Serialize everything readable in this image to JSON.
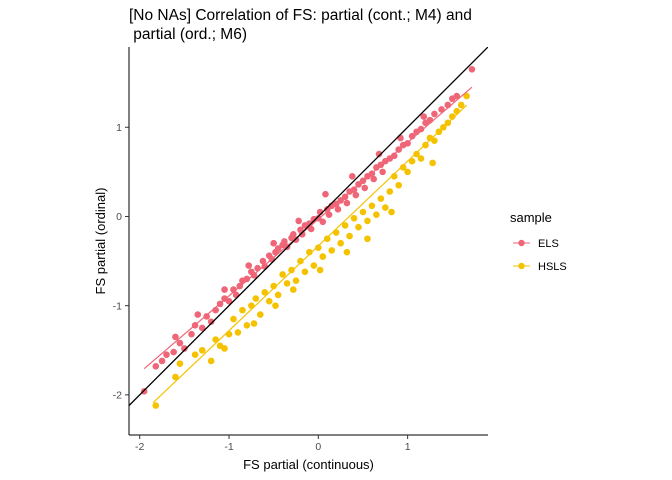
{
  "chart_data": {
    "type": "scatter",
    "title_lines": [
      "[No NAs] Correlation of FS: partial (cont.; M4) and",
      " partial (ord.; M6)"
    ],
    "xlabel": "FS partial (continuous)",
    "ylabel": "FS partial (ordinal)",
    "xlim": [
      -2.12,
      1.9
    ],
    "ylim": [
      -2.45,
      1.9
    ],
    "x_ticks": [
      -2,
      -1,
      0,
      1
    ],
    "y_ticks": [
      -2,
      -1,
      0,
      1
    ],
    "x_tick_labels": [
      "-2",
      "-1",
      "0",
      "1"
    ],
    "y_tick_labels": [
      "-2",
      "-1",
      "0",
      "1"
    ],
    "grid": false,
    "legend": {
      "title": "sample",
      "position": "right",
      "entries": [
        {
          "label": "ELS",
          "color": "#EE6677"
        },
        {
          "label": "HSLS",
          "color": "#F5C200"
        }
      ]
    },
    "identity_line": {
      "slope": 1,
      "intercept": 0,
      "color": "#000000"
    },
    "series": [
      {
        "name": "ELS",
        "color": "#EE6677",
        "fit": {
          "slope": 0.86,
          "intercept": -0.03,
          "x_range": [
            -1.95,
            1.72
          ]
        },
        "points": [
          [
            -1.95,
            -1.96
          ],
          [
            -1.82,
            -1.68
          ],
          [
            -1.75,
            -1.62
          ],
          [
            -1.7,
            -1.55
          ],
          [
            -1.62,
            -1.52
          ],
          [
            -1.55,
            -1.42
          ],
          [
            -1.5,
            -1.48
          ],
          [
            -1.42,
            -1.32
          ],
          [
            -1.38,
            -1.22
          ],
          [
            -1.3,
            -1.25
          ],
          [
            -1.25,
            -1.12
          ],
          [
            -1.2,
            -1.18
          ],
          [
            -1.15,
            -1.05
          ],
          [
            -1.1,
            -0.98
          ],
          [
            -1.05,
            -0.92
          ],
          [
            -1.0,
            -0.95
          ],
          [
            -0.95,
            -0.82
          ],
          [
            -0.92,
            -0.88
          ],
          [
            -0.88,
            -0.78
          ],
          [
            -0.85,
            -0.72
          ],
          [
            -0.8,
            -0.7
          ],
          [
            -0.75,
            -0.62
          ],
          [
            -0.72,
            -0.66
          ],
          [
            -0.68,
            -0.58
          ],
          [
            -0.62,
            -0.5
          ],
          [
            -0.6,
            -0.56
          ],
          [
            -0.55,
            -0.44
          ],
          [
            -0.52,
            -0.48
          ],
          [
            -0.48,
            -0.4
          ],
          [
            -0.45,
            -0.36
          ],
          [
            -0.4,
            -0.32
          ],
          [
            -0.38,
            -0.28
          ],
          [
            -0.35,
            -0.34
          ],
          [
            -0.3,
            -0.24
          ],
          [
            -0.28,
            -0.2
          ],
          [
            -0.25,
            -0.26
          ],
          [
            -0.2,
            -0.15
          ],
          [
            -0.18,
            -0.2
          ],
          [
            -0.15,
            -0.1
          ],
          [
            -0.1,
            -0.08
          ],
          [
            -0.08,
            -0.14
          ],
          [
            -0.05,
            -0.03
          ],
          [
            0.0,
            -0.02
          ],
          [
            0.02,
            0.05
          ],
          [
            0.05,
            -0.06
          ],
          [
            0.1,
            0.08
          ],
          [
            0.12,
            0.02
          ],
          [
            0.15,
            0.12
          ],
          [
            0.2,
            0.14
          ],
          [
            0.22,
            0.08
          ],
          [
            0.25,
            0.18
          ],
          [
            0.3,
            0.22
          ],
          [
            0.32,
            0.15
          ],
          [
            0.35,
            0.28
          ],
          [
            0.4,
            0.3
          ],
          [
            0.42,
            0.24
          ],
          [
            0.45,
            0.36
          ],
          [
            0.5,
            0.4
          ],
          [
            0.52,
            0.32
          ],
          [
            0.55,
            0.45
          ],
          [
            0.6,
            0.48
          ],
          [
            0.62,
            0.42
          ],
          [
            0.65,
            0.55
          ],
          [
            0.7,
            0.58
          ],
          [
            0.72,
            0.5
          ],
          [
            0.75,
            0.62
          ],
          [
            0.8,
            0.65
          ],
          [
            0.85,
            0.68
          ],
          [
            0.9,
            0.75
          ],
          [
            0.95,
            0.8
          ],
          [
            1.0,
            0.82
          ],
          [
            1.05,
            0.9
          ],
          [
            1.1,
            0.95
          ],
          [
            1.15,
            0.98
          ],
          [
            1.2,
            1.05
          ],
          [
            1.25,
            1.08
          ],
          [
            1.3,
            1.15
          ],
          [
            1.38,
            1.2
          ],
          [
            1.45,
            1.25
          ],
          [
            1.5,
            1.32
          ],
          [
            1.55,
            1.35
          ],
          [
            1.72,
            1.65
          ],
          [
            -1.6,
            -1.35
          ],
          [
            -1.35,
            -1.1
          ],
          [
            -1.05,
            -0.82
          ],
          [
            -0.78,
            -0.55
          ],
          [
            -0.5,
            -0.3
          ],
          [
            -0.22,
            -0.05
          ],
          [
            0.08,
            0.25
          ],
          [
            0.38,
            0.45
          ],
          [
            0.68,
            0.7
          ],
          [
            0.92,
            0.88
          ],
          [
            1.18,
            1.12
          ]
        ]
      },
      {
        "name": "HSLS",
        "color": "#F5C200",
        "fit": {
          "slope": 0.95,
          "intercept": -0.33,
          "x_range": [
            -1.85,
            1.66
          ]
        },
        "points": [
          [
            -1.82,
            -2.12
          ],
          [
            -1.6,
            -1.8
          ],
          [
            -1.55,
            -1.65
          ],
          [
            -1.38,
            -1.55
          ],
          [
            -1.3,
            -1.5
          ],
          [
            -1.2,
            -1.62
          ],
          [
            -1.15,
            -1.38
          ],
          [
            -1.1,
            -1.45
          ],
          [
            -1.0,
            -1.32
          ],
          [
            -0.95,
            -1.15
          ],
          [
            -0.9,
            -1.3
          ],
          [
            -0.85,
            -1.05
          ],
          [
            -0.8,
            -1.22
          ],
          [
            -0.75,
            -1.0
          ],
          [
            -0.7,
            -0.92
          ],
          [
            -0.65,
            -1.1
          ],
          [
            -0.6,
            -0.85
          ],
          [
            -0.55,
            -0.95
          ],
          [
            -0.5,
            -0.78
          ],
          [
            -0.45,
            -0.88
          ],
          [
            -0.4,
            -0.65
          ],
          [
            -0.35,
            -0.75
          ],
          [
            -0.3,
            -0.6
          ],
          [
            -0.25,
            -0.72
          ],
          [
            -0.2,
            -0.5
          ],
          [
            -0.15,
            -0.62
          ],
          [
            -0.1,
            -0.4
          ],
          [
            -0.05,
            -0.55
          ],
          [
            0.0,
            -0.35
          ],
          [
            0.05,
            -0.45
          ],
          [
            0.1,
            -0.25
          ],
          [
            0.15,
            -0.38
          ],
          [
            0.2,
            -0.18
          ],
          [
            0.25,
            -0.3
          ],
          [
            0.3,
            -0.1
          ],
          [
            0.35,
            -0.22
          ],
          [
            0.4,
            -0.02
          ],
          [
            0.45,
            -0.12
          ],
          [
            0.5,
            0.05
          ],
          [
            0.55,
            -0.05
          ],
          [
            0.6,
            0.12
          ],
          [
            0.65,
            0.02
          ],
          [
            0.7,
            0.2
          ],
          [
            0.75,
            0.1
          ],
          [
            0.8,
            0.28
          ],
          [
            0.85,
            0.45
          ],
          [
            0.9,
            0.35
          ],
          [
            0.95,
            0.55
          ],
          [
            1.0,
            0.5
          ],
          [
            1.05,
            0.62
          ],
          [
            1.1,
            0.7
          ],
          [
            1.15,
            0.65
          ],
          [
            1.2,
            0.8
          ],
          [
            1.25,
            0.88
          ],
          [
            1.3,
            0.85
          ],
          [
            1.35,
            0.95
          ],
          [
            1.4,
            1.0
          ],
          [
            1.45,
            1.05
          ],
          [
            1.5,
            1.12
          ],
          [
            1.55,
            1.18
          ],
          [
            1.6,
            1.25
          ],
          [
            1.66,
            1.35
          ],
          [
            -1.05,
            -1.48
          ],
          [
            -0.48,
            -1.0
          ],
          [
            0.02,
            -0.6
          ],
          [
            0.55,
            -0.25
          ],
          [
            -0.72,
            -1.2
          ],
          [
            -0.28,
            -0.82
          ],
          [
            0.32,
            -0.4
          ],
          [
            0.82,
            0.05
          ],
          [
            1.28,
            0.6
          ]
        ]
      }
    ]
  }
}
